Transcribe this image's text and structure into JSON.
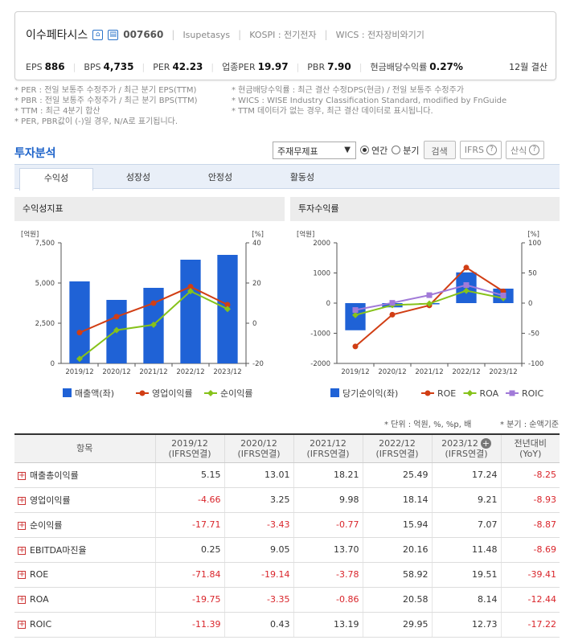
{
  "header": {
    "company": "이수페타시스",
    "code": "007660",
    "eng_name": "Isupetasys",
    "market": "KOSPI : 전기전자",
    "wics": "WICS : 전자장비와기기",
    "metrics": [
      {
        "label": "EPS",
        "value": "886"
      },
      {
        "label": "BPS",
        "value": "4,735"
      },
      {
        "label": "PER",
        "value": "42.23"
      },
      {
        "label": "업종PER",
        "value": "19.97"
      },
      {
        "label": "PBR",
        "value": "7.90"
      },
      {
        "label": "현금배당수익률",
        "value": "0.27%"
      }
    ],
    "settlement": "12월 결산"
  },
  "notes": {
    "left": [
      "* PER : 전일 보통주 수정주가 / 최근 분기 EPS(TTM)",
      "* PBR : 전일 보통주 수정주가 / 최근 분기 BPS(TTM)",
      "* TTM : 최근 4분기 합산",
      "* PER, PBR값이 (-)일 경우, N/A로 표기됩니다."
    ],
    "right": [
      "* 현금배당수익률 : 최근 결산 수정DPS(현금) / 전일 보통주 수정주가",
      "* WICS : WISE Industry Classification Standard, modified by FnGuide",
      "* TTM 데이터가 없는 경우, 최근 결산 데이터로 표시됩니다."
    ]
  },
  "section_title": "투자분석",
  "controls": {
    "select_value": "주재무제표",
    "radio_annual": "연간",
    "radio_quarter": "분기",
    "search_button": "검색",
    "ifrs_button": "IFRS",
    "formula_button": "산식"
  },
  "tabs": [
    "수익성",
    "성장성",
    "안정성",
    "활동성"
  ],
  "panels": {
    "left_title": "수익성지표",
    "right_title": "투자수익률"
  },
  "chart_data": [
    {
      "type": "bar",
      "title": "수익성지표",
      "categories": [
        "2019/12",
        "2020/12",
        "2021/12",
        "2022/12",
        "2023/12"
      ],
      "left_axis_label": "[억원]",
      "right_axis_label": "[%]",
      "left_ticks": [
        "7,500",
        "5,000",
        "2,500",
        "0"
      ],
      "right_ticks": [
        "40",
        "20",
        "0",
        "-20"
      ],
      "ylim_left": [
        0,
        7500
      ],
      "ylim_right": [
        -20,
        40
      ],
      "bar_series": {
        "name": "매출액(좌)",
        "color": "#1f62d6",
        "values": [
          5100,
          3950,
          4700,
          6450,
          6750
        ]
      },
      "line_series": [
        {
          "name": "영업이익률",
          "color": "#d13e14",
          "values": [
            -4.66,
            3.25,
            9.98,
            18.14,
            9.21
          ]
        },
        {
          "name": "순이익률",
          "color": "#86c21a",
          "values": [
            -17.71,
            -3.43,
            -0.77,
            15.94,
            7.07
          ]
        }
      ]
    },
    {
      "type": "bar",
      "title": "투자수익률",
      "categories": [
        "2019/12",
        "2020/12",
        "2021/12",
        "2022/12",
        "2023/12"
      ],
      "left_axis_label": "[억원]",
      "right_axis_label": "[%]",
      "left_ticks": [
        "2000",
        "1000",
        "0",
        "-1000",
        "-2000"
      ],
      "right_ticks": [
        "100",
        "50",
        "0",
        "-50",
        "-100"
      ],
      "ylim_left": [
        -2000,
        2000
      ],
      "ylim_right": [
        -100,
        100
      ],
      "bar_series": {
        "name": "당기순이익(좌)",
        "color": "#1f62d6",
        "values": [
          -900,
          -140,
          -40,
          1020,
          480
        ]
      },
      "line_series": [
        {
          "name": "ROE",
          "color": "#d13e14",
          "values": [
            -71.84,
            -19.14,
            -3.78,
            58.92,
            19.51
          ]
        },
        {
          "name": "ROA",
          "color": "#86c21a",
          "values": [
            -19.75,
            -3.35,
            -0.86,
            20.58,
            8.14
          ]
        },
        {
          "name": "ROIC",
          "color": "#a17ad8",
          "values": [
            -11.39,
            0.43,
            13.19,
            29.95,
            12.73
          ]
        }
      ]
    }
  ],
  "unit_note": "* 단위 : 억원, %, %p, 배",
  "unit_note2": "* 분기 : 순액기준",
  "table": {
    "headers": [
      "항목",
      "2019/12\n(IFRS연결)",
      "2020/12\n(IFRS연결)",
      "2021/12\n(IFRS연결)",
      "2022/12\n(IFRS연결)",
      "2023/12\n(IFRS연결)",
      "전년대비\n(YoY)"
    ],
    "rows": [
      {
        "label": "매출총이익률",
        "values": [
          "5.15",
          "13.01",
          "18.21",
          "25.49",
          "17.24",
          "-8.25"
        ]
      },
      {
        "label": "영업이익률",
        "values": [
          "-4.66",
          "3.25",
          "9.98",
          "18.14",
          "9.21",
          "-8.93"
        ]
      },
      {
        "label": "순이익률",
        "values": [
          "-17.71",
          "-3.43",
          "-0.77",
          "15.94",
          "7.07",
          "-8.87"
        ]
      },
      {
        "label": "EBITDA마진율",
        "values": [
          "0.25",
          "9.05",
          "13.70",
          "20.16",
          "11.48",
          "-8.69"
        ]
      },
      {
        "label": "ROE",
        "values": [
          "-71.84",
          "-19.14",
          "-3.78",
          "58.92",
          "19.51",
          "-39.41"
        ]
      },
      {
        "label": "ROA",
        "values": [
          "-19.75",
          "-3.35",
          "-0.86",
          "20.58",
          "8.14",
          "-12.44"
        ]
      },
      {
        "label": "ROIC",
        "values": [
          "-11.39",
          "0.43",
          "13.19",
          "29.95",
          "12.73",
          "-17.22"
        ]
      }
    ]
  }
}
